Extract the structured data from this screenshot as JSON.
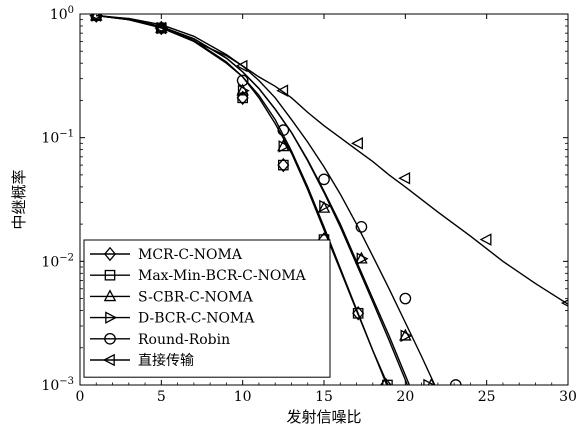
{
  "chart_data": {
    "type": "line",
    "xlabel": "发射信噪比",
    "ylabel": "中继概率",
    "xlim": [
      0,
      30
    ],
    "ylim": [
      0.001,
      1
    ],
    "y_scale": "log",
    "grid": false,
    "legend_placement": "bottom-left",
    "x_ticks": [
      "0",
      "5",
      "10",
      "15",
      "20",
      "25",
      "30"
    ],
    "y_ticks": [
      {
        "base": "10",
        "exp": "0"
      },
      {
        "base": "10",
        "exp": "−1"
      },
      {
        "base": "10",
        "exp": "−2"
      },
      {
        "base": "10",
        "exp": "−3"
      }
    ],
    "series": [
      {
        "name": "MCR-C-NOMA",
        "marker": "diamond",
        "curve": [
          [
            1,
            0.97
          ],
          [
            3,
            0.9
          ],
          [
            5,
            0.78
          ],
          [
            7,
            0.6
          ],
          [
            9,
            0.4
          ],
          [
            10,
            0.31
          ],
          [
            11,
            0.21
          ],
          [
            12,
            0.13
          ],
          [
            13,
            0.075
          ],
          [
            14,
            0.038
          ],
          [
            15,
            0.018
          ],
          [
            16,
            0.0085
          ],
          [
            17,
            0.004
          ],
          [
            18,
            0.0019
          ],
          [
            19,
            0.00095
          ]
        ],
        "markers": [
          [
            1,
            0.97
          ],
          [
            5,
            0.77
          ],
          [
            10,
            0.21
          ],
          [
            12.5,
            0.06
          ],
          [
            15,
            0.015
          ],
          [
            17.1,
            0.0038
          ],
          [
            18.8,
            0.001
          ]
        ]
      },
      {
        "name": "Max-Min-BCR-C-NOMA",
        "marker": "square",
        "curve": [
          [
            1,
            0.97
          ],
          [
            3,
            0.9
          ],
          [
            5,
            0.78
          ],
          [
            7,
            0.61
          ],
          [
            9,
            0.41
          ],
          [
            10,
            0.31
          ],
          [
            11,
            0.22
          ],
          [
            12,
            0.14
          ],
          [
            13,
            0.078
          ],
          [
            14,
            0.04
          ],
          [
            15,
            0.019
          ],
          [
            16,
            0.0088
          ],
          [
            17,
            0.0041
          ],
          [
            18,
            0.0019
          ],
          [
            19,
            0.0009
          ]
        ],
        "markers": [
          [
            1,
            0.97
          ],
          [
            5,
            0.77
          ],
          [
            10,
            0.21
          ],
          [
            12.5,
            0.06
          ],
          [
            15,
            0.015
          ],
          [
            17.1,
            0.0038
          ],
          [
            18.9,
            0.001
          ]
        ]
      },
      {
        "name": "S-CBR-C-NOMA",
        "marker": "triangle-up",
        "curve": [
          [
            1,
            0.97
          ],
          [
            3,
            0.91
          ],
          [
            5,
            0.79
          ],
          [
            7,
            0.63
          ],
          [
            9,
            0.44
          ],
          [
            10,
            0.34
          ],
          [
            11,
            0.25
          ],
          [
            12,
            0.17
          ],
          [
            13,
            0.11
          ],
          [
            14,
            0.065
          ],
          [
            15,
            0.036
          ],
          [
            16,
            0.019
          ],
          [
            17,
            0.0095
          ],
          [
            18,
            0.0047
          ],
          [
            19,
            0.0023
          ],
          [
            20,
            0.0011
          ],
          [
            21,
            0.00052
          ]
        ],
        "markers": [
          [
            1,
            0.97
          ],
          [
            5,
            0.77
          ],
          [
            10,
            0.24
          ],
          [
            12.5,
            0.085
          ],
          [
            15,
            0.027
          ],
          [
            17.3,
            0.0105
          ],
          [
            20,
            0.0025
          ],
          [
            21.6,
            0.001
          ]
        ]
      },
      {
        "name": "D-BCR-C-NOMA",
        "marker": "triangle-right",
        "curve": [
          [
            1,
            0.97
          ],
          [
            3,
            0.91
          ],
          [
            5,
            0.79
          ],
          [
            7,
            0.63
          ],
          [
            9,
            0.44
          ],
          [
            10,
            0.34
          ],
          [
            11,
            0.25
          ],
          [
            12,
            0.17
          ],
          [
            13,
            0.11
          ],
          [
            14,
            0.066
          ],
          [
            15,
            0.037
          ],
          [
            16,
            0.02
          ],
          [
            17,
            0.01
          ],
          [
            18,
            0.005
          ],
          [
            19,
            0.0025
          ],
          [
            20,
            0.0012
          ],
          [
            21,
            0.00058
          ]
        ],
        "markers": [
          [
            1,
            0.97
          ],
          [
            5,
            0.77
          ],
          [
            10,
            0.24
          ],
          [
            12.5,
            0.085
          ],
          [
            15,
            0.028
          ],
          [
            17.3,
            0.0105
          ],
          [
            20,
            0.0025
          ],
          [
            21.4,
            0.001
          ]
        ]
      },
      {
        "name": "Round-Robin",
        "marker": "circle",
        "curve": [
          [
            1,
            0.97
          ],
          [
            3,
            0.92
          ],
          [
            5,
            0.82
          ],
          [
            7,
            0.66
          ],
          [
            9,
            0.47
          ],
          [
            10,
            0.38
          ],
          [
            11,
            0.29
          ],
          [
            12,
            0.21
          ],
          [
            13,
            0.14
          ],
          [
            14,
            0.092
          ],
          [
            15,
            0.058
          ],
          [
            16,
            0.035
          ],
          [
            17,
            0.02
          ],
          [
            18,
            0.011
          ],
          [
            19,
            0.006
          ],
          [
            20,
            0.0032
          ],
          [
            21,
            0.0017
          ],
          [
            22,
            0.00088
          ]
        ],
        "markers": [
          [
            1,
            0.97
          ],
          [
            5,
            0.77
          ],
          [
            10,
            0.29
          ],
          [
            12.5,
            0.115
          ],
          [
            15,
            0.046
          ],
          [
            17.3,
            0.019
          ],
          [
            20,
            0.005
          ],
          [
            23.1,
            0.001
          ]
        ]
      },
      {
        "name": "直接传输",
        "marker": "triangle-left",
        "curve": [
          [
            1,
            0.97
          ],
          [
            3,
            0.9
          ],
          [
            5,
            0.77
          ],
          [
            7,
            0.6
          ],
          [
            9,
            0.46
          ],
          [
            10,
            0.38
          ],
          [
            11,
            0.31
          ],
          [
            12,
            0.26
          ],
          [
            13,
            0.21
          ],
          [
            14,
            0.16
          ],
          [
            15,
            0.125
          ],
          [
            16,
            0.1
          ],
          [
            17,
            0.08
          ],
          [
            18,
            0.064
          ],
          [
            19,
            0.05
          ],
          [
            20,
            0.04
          ],
          [
            22,
            0.025
          ],
          [
            24,
            0.016
          ],
          [
            26,
            0.01
          ],
          [
            28,
            0.0066
          ],
          [
            30,
            0.0045
          ]
        ],
        "markers": [
          [
            1,
            0.97
          ],
          [
            5,
            0.77
          ],
          [
            10,
            0.38
          ],
          [
            12.5,
            0.24
          ],
          [
            17.1,
            0.09
          ],
          [
            20,
            0.047
          ],
          [
            25,
            0.015
          ],
          [
            30,
            0.0046
          ]
        ]
      }
    ]
  }
}
